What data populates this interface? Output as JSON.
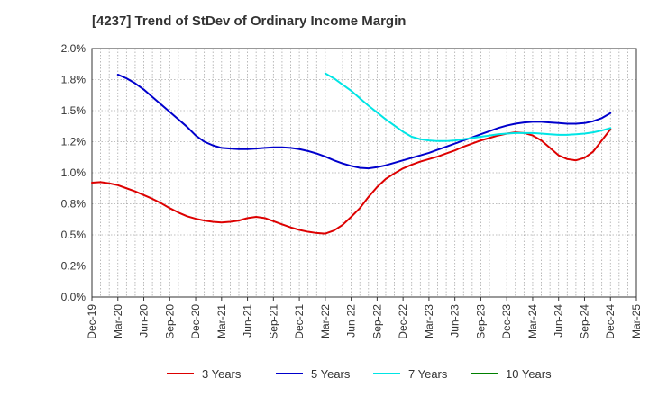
{
  "chart_data": {
    "type": "line",
    "title": "[4237]  Trend of StDev of Ordinary Income Margin",
    "xlabel": "",
    "ylabel": "",
    "x_ticks": [
      "Dec-19",
      "Mar-20",
      "Jun-20",
      "Sep-20",
      "Dec-20",
      "Mar-21",
      "Jun-21",
      "Sep-21",
      "Dec-21",
      "Mar-22",
      "Jun-22",
      "Sep-22",
      "Dec-22",
      "Mar-23",
      "Jun-23",
      "Sep-23",
      "Dec-23",
      "Mar-24",
      "Jun-24",
      "Sep-24",
      "Dec-24",
      "Mar-25"
    ],
    "y_ticks": [
      "0.0%",
      "0.2%",
      "0.5%",
      "0.8%",
      "1.0%",
      "1.2%",
      "1.5%",
      "1.8%",
      "2.0%"
    ],
    "ylim": [
      0,
      2.0
    ],
    "grid": true,
    "legend_position": "bottom",
    "series": [
      {
        "name": "3 Years",
        "color": "#dd0000",
        "points": [
          [
            "Dec-19",
            0.92
          ],
          [
            "Jan-20",
            0.925
          ],
          [
            "Feb-20",
            0.915
          ],
          [
            "Mar-20",
            0.9
          ],
          [
            "Apr-20",
            0.875
          ],
          [
            "May-20",
            0.85
          ],
          [
            "Jun-20",
            0.82
          ],
          [
            "Jul-20",
            0.79
          ],
          [
            "Aug-20",
            0.755
          ],
          [
            "Sep-20",
            0.715
          ],
          [
            "Oct-20",
            0.68
          ],
          [
            "Nov-20",
            0.65
          ],
          [
            "Dec-20",
            0.63
          ],
          [
            "Jan-21",
            0.615
          ],
          [
            "Feb-21",
            0.605
          ],
          [
            "Mar-21",
            0.6
          ],
          [
            "Apr-21",
            0.605
          ],
          [
            "May-21",
            0.615
          ],
          [
            "Jun-21",
            0.635
          ],
          [
            "Jul-21",
            0.645
          ],
          [
            "Aug-21",
            0.635
          ],
          [
            "Sep-21",
            0.61
          ],
          [
            "Oct-21",
            0.585
          ],
          [
            "Nov-21",
            0.56
          ],
          [
            "Dec-21",
            0.54
          ],
          [
            "Jan-22",
            0.525
          ],
          [
            "Feb-22",
            0.515
          ],
          [
            "Mar-22",
            0.51
          ],
          [
            "Apr-22",
            0.535
          ],
          [
            "May-22",
            0.58
          ],
          [
            "Jun-22",
            0.645
          ],
          [
            "Jul-22",
            0.715
          ],
          [
            "Aug-22",
            0.805
          ],
          [
            "Sep-22",
            0.885
          ],
          [
            "Oct-22",
            0.95
          ],
          [
            "Nov-22",
            0.995
          ],
          [
            "Dec-22",
            1.035
          ],
          [
            "Jan-23",
            1.065
          ],
          [
            "Feb-23",
            1.09
          ],
          [
            "Mar-23",
            1.11
          ],
          [
            "Apr-23",
            1.13
          ],
          [
            "May-23",
            1.155
          ],
          [
            "Jun-23",
            1.18
          ],
          [
            "Jul-23",
            1.21
          ],
          [
            "Aug-23",
            1.235
          ],
          [
            "Sep-23",
            1.26
          ],
          [
            "Oct-23",
            1.28
          ],
          [
            "Nov-23",
            1.3
          ],
          [
            "Dec-23",
            1.315
          ],
          [
            "Jan-24",
            1.325
          ],
          [
            "Feb-24",
            1.32
          ],
          [
            "Mar-24",
            1.3
          ],
          [
            "Apr-24",
            1.26
          ],
          [
            "May-24",
            1.2
          ],
          [
            "Jun-24",
            1.14
          ],
          [
            "Jul-24",
            1.11
          ],
          [
            "Aug-24",
            1.1
          ],
          [
            "Sep-24",
            1.12
          ],
          [
            "Oct-24",
            1.17
          ],
          [
            "Nov-24",
            1.26
          ],
          [
            "Dec-24",
            1.35
          ]
        ]
      },
      {
        "name": "5 Years",
        "color": "#0000cc",
        "points": [
          [
            "Mar-20",
            1.79
          ],
          [
            "Apr-20",
            1.76
          ],
          [
            "May-20",
            1.72
          ],
          [
            "Jun-20",
            1.67
          ],
          [
            "Jul-20",
            1.61
          ],
          [
            "Aug-20",
            1.55
          ],
          [
            "Sep-20",
            1.49
          ],
          [
            "Oct-20",
            1.43
          ],
          [
            "Nov-20",
            1.37
          ],
          [
            "Dec-20",
            1.3
          ],
          [
            "Jan-21",
            1.25
          ],
          [
            "Feb-21",
            1.22
          ],
          [
            "Mar-21",
            1.2
          ],
          [
            "Apr-21",
            1.195
          ],
          [
            "May-21",
            1.19
          ],
          [
            "Jun-21",
            1.19
          ],
          [
            "Jul-21",
            1.195
          ],
          [
            "Aug-21",
            1.2
          ],
          [
            "Sep-21",
            1.205
          ],
          [
            "Oct-21",
            1.205
          ],
          [
            "Nov-21",
            1.2
          ],
          [
            "Dec-21",
            1.19
          ],
          [
            "Jan-22",
            1.175
          ],
          [
            "Feb-22",
            1.155
          ],
          [
            "Mar-22",
            1.13
          ],
          [
            "Apr-22",
            1.1
          ],
          [
            "May-22",
            1.075
          ],
          [
            "Jun-22",
            1.055
          ],
          [
            "Jul-22",
            1.04
          ],
          [
            "Aug-22",
            1.035
          ],
          [
            "Sep-22",
            1.045
          ],
          [
            "Oct-22",
            1.06
          ],
          [
            "Nov-22",
            1.08
          ],
          [
            "Dec-22",
            1.1
          ],
          [
            "Jan-23",
            1.12
          ],
          [
            "Feb-23",
            1.14
          ],
          [
            "Mar-23",
            1.16
          ],
          [
            "Apr-23",
            1.185
          ],
          [
            "May-23",
            1.21
          ],
          [
            "Jun-23",
            1.235
          ],
          [
            "Jul-23",
            1.26
          ],
          [
            "Aug-23",
            1.285
          ],
          [
            "Sep-23",
            1.31
          ],
          [
            "Oct-23",
            1.335
          ],
          [
            "Nov-23",
            1.36
          ],
          [
            "Dec-23",
            1.38
          ],
          [
            "Jan-24",
            1.395
          ],
          [
            "Feb-24",
            1.405
          ],
          [
            "Mar-24",
            1.41
          ],
          [
            "Apr-24",
            1.41
          ],
          [
            "May-24",
            1.405
          ],
          [
            "Jun-24",
            1.4
          ],
          [
            "Jul-24",
            1.395
          ],
          [
            "Aug-24",
            1.395
          ],
          [
            "Sep-24",
            1.4
          ],
          [
            "Oct-24",
            1.415
          ],
          [
            "Nov-24",
            1.44
          ],
          [
            "Dec-24",
            1.48
          ]
        ]
      },
      {
        "name": "7 Years",
        "color": "#00e5e5",
        "points": [
          [
            "Mar-22",
            1.8
          ],
          [
            "Apr-22",
            1.76
          ],
          [
            "May-22",
            1.71
          ],
          [
            "Jun-22",
            1.66
          ],
          [
            "Jul-22",
            1.6
          ],
          [
            "Aug-22",
            1.54
          ],
          [
            "Sep-22",
            1.485
          ],
          [
            "Oct-22",
            1.43
          ],
          [
            "Nov-22",
            1.38
          ],
          [
            "Dec-22",
            1.33
          ],
          [
            "Jan-23",
            1.29
          ],
          [
            "Feb-23",
            1.27
          ],
          [
            "Mar-23",
            1.26
          ],
          [
            "Apr-23",
            1.255
          ],
          [
            "May-23",
            1.255
          ],
          [
            "Jun-23",
            1.26
          ],
          [
            "Jul-23",
            1.27
          ],
          [
            "Aug-23",
            1.28
          ],
          [
            "Sep-23",
            1.29
          ],
          [
            "Oct-23",
            1.3
          ],
          [
            "Nov-23",
            1.31
          ],
          [
            "Dec-23",
            1.315
          ],
          [
            "Jan-24",
            1.32
          ],
          [
            "Feb-24",
            1.32
          ],
          [
            "Mar-24",
            1.32
          ],
          [
            "Apr-24",
            1.315
          ],
          [
            "May-24",
            1.31
          ],
          [
            "Jun-24",
            1.305
          ],
          [
            "Jul-24",
            1.305
          ],
          [
            "Aug-24",
            1.31
          ],
          [
            "Sep-24",
            1.315
          ],
          [
            "Oct-24",
            1.325
          ],
          [
            "Nov-24",
            1.34
          ],
          [
            "Dec-24",
            1.36
          ]
        ]
      },
      {
        "name": "10 Years",
        "color": "#008000",
        "points": []
      }
    ]
  }
}
